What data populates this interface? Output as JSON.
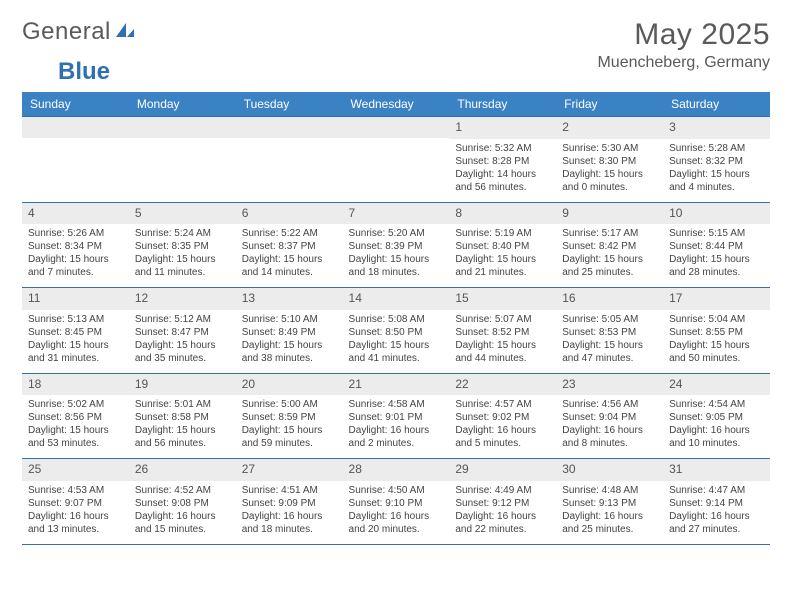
{
  "logo": {
    "general": "General",
    "blue": "Blue"
  },
  "title": "May 2025",
  "location": "Muencheberg, Germany",
  "colors": {
    "header_bg": "#3a82c4",
    "header_text": "#ffffff",
    "daynum_bg": "#ececec",
    "rule": "#2f6fb3",
    "logo_blue": "#2f6fb3",
    "text_gray": "#5a5a5a",
    "body_text": "#444444",
    "page_bg": "#ffffff"
  },
  "weekdays": [
    "Sunday",
    "Monday",
    "Tuesday",
    "Wednesday",
    "Thursday",
    "Friday",
    "Saturday"
  ],
  "weeks": [
    [
      null,
      null,
      null,
      null,
      {
        "n": "1",
        "sr": "Sunrise: 5:32 AM",
        "ss": "Sunset: 8:28 PM",
        "dl": "Daylight: 14 hours and 56 minutes."
      },
      {
        "n": "2",
        "sr": "Sunrise: 5:30 AM",
        "ss": "Sunset: 8:30 PM",
        "dl": "Daylight: 15 hours and 0 minutes."
      },
      {
        "n": "3",
        "sr": "Sunrise: 5:28 AM",
        "ss": "Sunset: 8:32 PM",
        "dl": "Daylight: 15 hours and 4 minutes."
      }
    ],
    [
      {
        "n": "4",
        "sr": "Sunrise: 5:26 AM",
        "ss": "Sunset: 8:34 PM",
        "dl": "Daylight: 15 hours and 7 minutes."
      },
      {
        "n": "5",
        "sr": "Sunrise: 5:24 AM",
        "ss": "Sunset: 8:35 PM",
        "dl": "Daylight: 15 hours and 11 minutes."
      },
      {
        "n": "6",
        "sr": "Sunrise: 5:22 AM",
        "ss": "Sunset: 8:37 PM",
        "dl": "Daylight: 15 hours and 14 minutes."
      },
      {
        "n": "7",
        "sr": "Sunrise: 5:20 AM",
        "ss": "Sunset: 8:39 PM",
        "dl": "Daylight: 15 hours and 18 minutes."
      },
      {
        "n": "8",
        "sr": "Sunrise: 5:19 AM",
        "ss": "Sunset: 8:40 PM",
        "dl": "Daylight: 15 hours and 21 minutes."
      },
      {
        "n": "9",
        "sr": "Sunrise: 5:17 AM",
        "ss": "Sunset: 8:42 PM",
        "dl": "Daylight: 15 hours and 25 minutes."
      },
      {
        "n": "10",
        "sr": "Sunrise: 5:15 AM",
        "ss": "Sunset: 8:44 PM",
        "dl": "Daylight: 15 hours and 28 minutes."
      }
    ],
    [
      {
        "n": "11",
        "sr": "Sunrise: 5:13 AM",
        "ss": "Sunset: 8:45 PM",
        "dl": "Daylight: 15 hours and 31 minutes."
      },
      {
        "n": "12",
        "sr": "Sunrise: 5:12 AM",
        "ss": "Sunset: 8:47 PM",
        "dl": "Daylight: 15 hours and 35 minutes."
      },
      {
        "n": "13",
        "sr": "Sunrise: 5:10 AM",
        "ss": "Sunset: 8:49 PM",
        "dl": "Daylight: 15 hours and 38 minutes."
      },
      {
        "n": "14",
        "sr": "Sunrise: 5:08 AM",
        "ss": "Sunset: 8:50 PM",
        "dl": "Daylight: 15 hours and 41 minutes."
      },
      {
        "n": "15",
        "sr": "Sunrise: 5:07 AM",
        "ss": "Sunset: 8:52 PM",
        "dl": "Daylight: 15 hours and 44 minutes."
      },
      {
        "n": "16",
        "sr": "Sunrise: 5:05 AM",
        "ss": "Sunset: 8:53 PM",
        "dl": "Daylight: 15 hours and 47 minutes."
      },
      {
        "n": "17",
        "sr": "Sunrise: 5:04 AM",
        "ss": "Sunset: 8:55 PM",
        "dl": "Daylight: 15 hours and 50 minutes."
      }
    ],
    [
      {
        "n": "18",
        "sr": "Sunrise: 5:02 AM",
        "ss": "Sunset: 8:56 PM",
        "dl": "Daylight: 15 hours and 53 minutes."
      },
      {
        "n": "19",
        "sr": "Sunrise: 5:01 AM",
        "ss": "Sunset: 8:58 PM",
        "dl": "Daylight: 15 hours and 56 minutes."
      },
      {
        "n": "20",
        "sr": "Sunrise: 5:00 AM",
        "ss": "Sunset: 8:59 PM",
        "dl": "Daylight: 15 hours and 59 minutes."
      },
      {
        "n": "21",
        "sr": "Sunrise: 4:58 AM",
        "ss": "Sunset: 9:01 PM",
        "dl": "Daylight: 16 hours and 2 minutes."
      },
      {
        "n": "22",
        "sr": "Sunrise: 4:57 AM",
        "ss": "Sunset: 9:02 PM",
        "dl": "Daylight: 16 hours and 5 minutes."
      },
      {
        "n": "23",
        "sr": "Sunrise: 4:56 AM",
        "ss": "Sunset: 9:04 PM",
        "dl": "Daylight: 16 hours and 8 minutes."
      },
      {
        "n": "24",
        "sr": "Sunrise: 4:54 AM",
        "ss": "Sunset: 9:05 PM",
        "dl": "Daylight: 16 hours and 10 minutes."
      }
    ],
    [
      {
        "n": "25",
        "sr": "Sunrise: 4:53 AM",
        "ss": "Sunset: 9:07 PM",
        "dl": "Daylight: 16 hours and 13 minutes."
      },
      {
        "n": "26",
        "sr": "Sunrise: 4:52 AM",
        "ss": "Sunset: 9:08 PM",
        "dl": "Daylight: 16 hours and 15 minutes."
      },
      {
        "n": "27",
        "sr": "Sunrise: 4:51 AM",
        "ss": "Sunset: 9:09 PM",
        "dl": "Daylight: 16 hours and 18 minutes."
      },
      {
        "n": "28",
        "sr": "Sunrise: 4:50 AM",
        "ss": "Sunset: 9:10 PM",
        "dl": "Daylight: 16 hours and 20 minutes."
      },
      {
        "n": "29",
        "sr": "Sunrise: 4:49 AM",
        "ss": "Sunset: 9:12 PM",
        "dl": "Daylight: 16 hours and 22 minutes."
      },
      {
        "n": "30",
        "sr": "Sunrise: 4:48 AM",
        "ss": "Sunset: 9:13 PM",
        "dl": "Daylight: 16 hours and 25 minutes."
      },
      {
        "n": "31",
        "sr": "Sunrise: 4:47 AM",
        "ss": "Sunset: 9:14 PM",
        "dl": "Daylight: 16 hours and 27 minutes."
      }
    ]
  ]
}
